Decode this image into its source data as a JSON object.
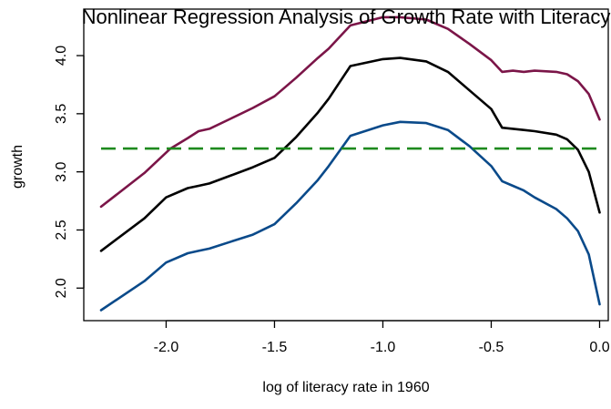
{
  "chart_data": {
    "type": "line",
    "title": "Nonlinear Regression Analysis of Growth Rate with Literacy",
    "xlabel": "log of literacy rate in 1960",
    "ylabel": "growth",
    "xlim": [
      -2.38,
      0.04
    ],
    "ylim": [
      1.72,
      4.4
    ],
    "xticks": [
      -2.0,
      -1.5,
      -1.0,
      -0.5,
      0.0
    ],
    "xtick_labels": [
      "-2.0",
      "-1.5",
      "-1.0",
      "-0.5",
      "0.0"
    ],
    "yticks": [
      2.0,
      2.5,
      3.0,
      3.5,
      4.0
    ],
    "ytick_labels": [
      "2.0",
      "2.5",
      "3.0",
      "3.5",
      "4.0"
    ],
    "grid": false,
    "series": [
      {
        "role": "upper band",
        "color": "#7B1548",
        "dash": "solid",
        "points": [
          [
            -2.3,
            2.7
          ],
          [
            -2.1,
            2.99
          ],
          [
            -1.98,
            3.2
          ],
          [
            -1.9,
            3.29
          ],
          [
            -1.85,
            3.35
          ],
          [
            -1.8,
            3.37
          ],
          [
            -1.7,
            3.46
          ],
          [
            -1.6,
            3.55
          ],
          [
            -1.5,
            3.65
          ],
          [
            -1.4,
            3.81
          ],
          [
            -1.3,
            3.98
          ],
          [
            -1.25,
            4.06
          ],
          [
            -1.15,
            4.26
          ],
          [
            -1.0,
            4.33
          ],
          [
            -0.92,
            4.33
          ],
          [
            -0.8,
            4.31
          ],
          [
            -0.7,
            4.23
          ],
          [
            -0.6,
            4.1
          ],
          [
            -0.5,
            3.96
          ],
          [
            -0.45,
            3.86
          ],
          [
            -0.4,
            3.87
          ],
          [
            -0.35,
            3.86
          ],
          [
            -0.3,
            3.87
          ],
          [
            -0.2,
            3.86
          ],
          [
            -0.15,
            3.84
          ],
          [
            -0.1,
            3.78
          ],
          [
            -0.05,
            3.67
          ],
          [
            0.0,
            3.45
          ]
        ]
      },
      {
        "role": "fit",
        "color": "#000000",
        "dash": "solid",
        "points": [
          [
            -2.3,
            2.32
          ],
          [
            -2.1,
            2.6
          ],
          [
            -2.0,
            2.78
          ],
          [
            -1.9,
            2.86
          ],
          [
            -1.85,
            2.88
          ],
          [
            -1.8,
            2.9
          ],
          [
            -1.7,
            2.97
          ],
          [
            -1.6,
            3.04
          ],
          [
            -1.5,
            3.12
          ],
          [
            -1.4,
            3.3
          ],
          [
            -1.3,
            3.51
          ],
          [
            -1.25,
            3.63
          ],
          [
            -1.15,
            3.91
          ],
          [
            -1.0,
            3.97
          ],
          [
            -0.92,
            3.98
          ],
          [
            -0.8,
            3.95
          ],
          [
            -0.7,
            3.86
          ],
          [
            -0.6,
            3.7
          ],
          [
            -0.5,
            3.54
          ],
          [
            -0.45,
            3.38
          ],
          [
            -0.4,
            3.37
          ],
          [
            -0.35,
            3.36
          ],
          [
            -0.3,
            3.35
          ],
          [
            -0.2,
            3.32
          ],
          [
            -0.15,
            3.28
          ],
          [
            -0.1,
            3.19
          ],
          [
            -0.05,
            3.0
          ],
          [
            0.0,
            2.65
          ]
        ]
      },
      {
        "role": "lower band",
        "color": "#0A4A8A",
        "dash": "solid",
        "points": [
          [
            -2.3,
            1.81
          ],
          [
            -2.1,
            2.06
          ],
          [
            -2.0,
            2.22
          ],
          [
            -1.9,
            2.3
          ],
          [
            -1.85,
            2.32
          ],
          [
            -1.8,
            2.34
          ],
          [
            -1.7,
            2.4
          ],
          [
            -1.6,
            2.46
          ],
          [
            -1.5,
            2.55
          ],
          [
            -1.4,
            2.73
          ],
          [
            -1.3,
            2.93
          ],
          [
            -1.25,
            3.05
          ],
          [
            -1.15,
            3.31
          ],
          [
            -1.0,
            3.4
          ],
          [
            -0.92,
            3.43
          ],
          [
            -0.8,
            3.42
          ],
          [
            -0.7,
            3.36
          ],
          [
            -0.6,
            3.22
          ],
          [
            -0.5,
            3.05
          ],
          [
            -0.45,
            2.92
          ],
          [
            -0.4,
            2.88
          ],
          [
            -0.35,
            2.84
          ],
          [
            -0.3,
            2.78
          ],
          [
            -0.2,
            2.68
          ],
          [
            -0.15,
            2.6
          ],
          [
            -0.1,
            2.49
          ],
          [
            -0.05,
            2.29
          ],
          [
            0.0,
            1.86
          ]
        ]
      },
      {
        "role": "constant reference",
        "color": "#1E8A1E",
        "dash": "dashed",
        "points": [
          [
            -2.3,
            3.2
          ],
          [
            0.0,
            3.2
          ]
        ]
      }
    ]
  }
}
